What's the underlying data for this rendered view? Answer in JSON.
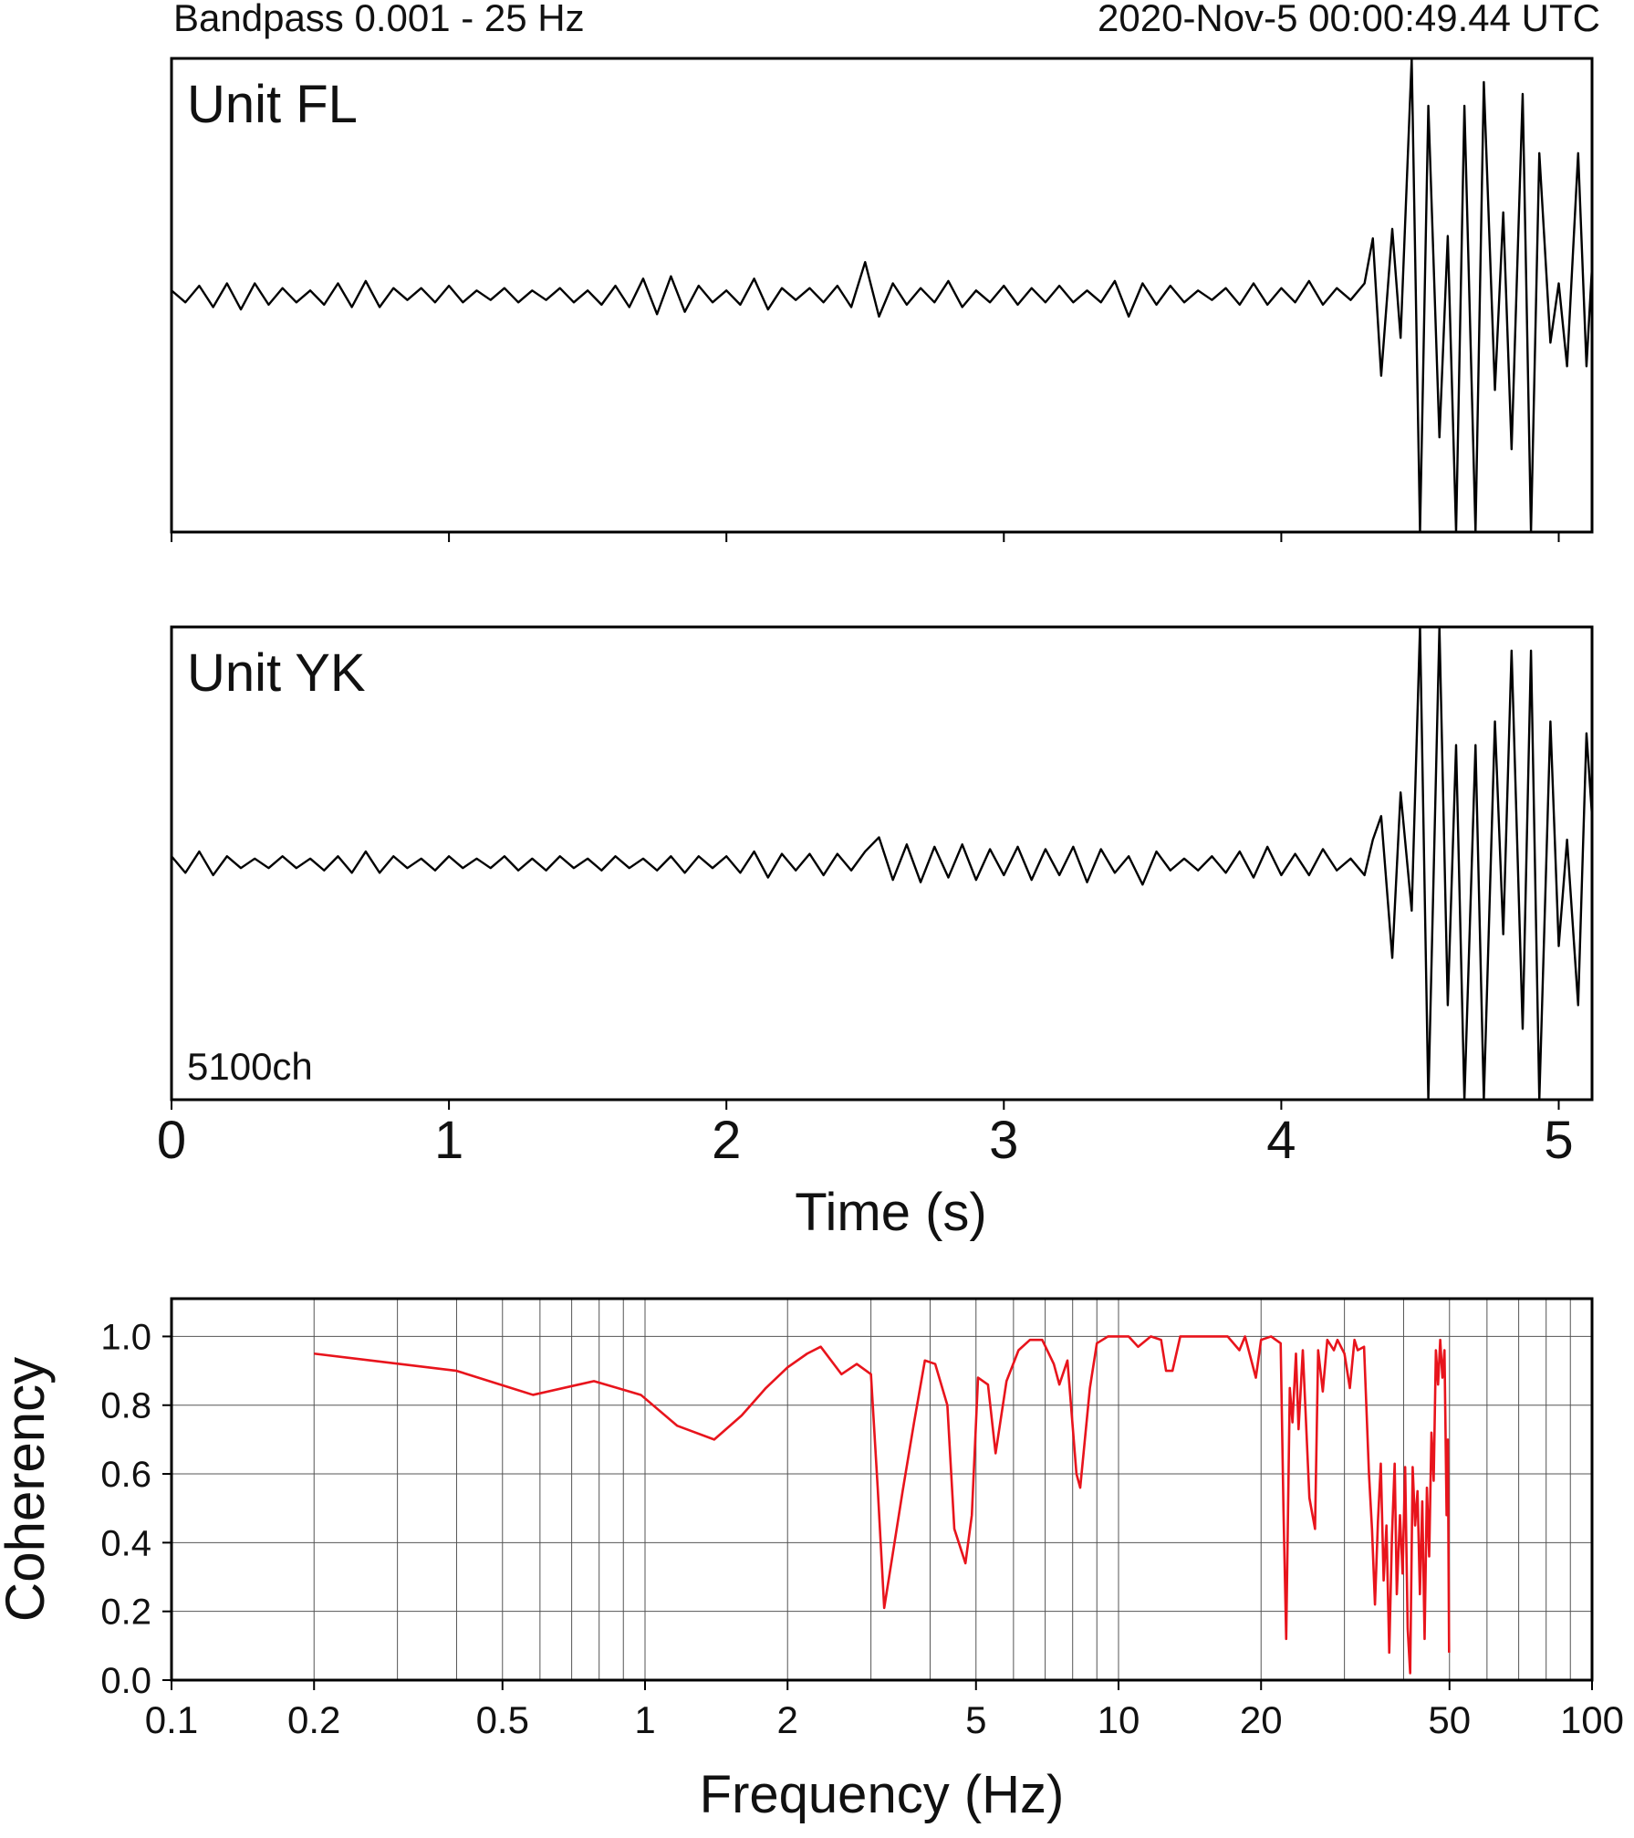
{
  "chart_data": [
    {
      "type": "line",
      "title": "Unit FL",
      "annotations": [
        "Bandpass 0.001 - 25 Hz",
        "2020-Nov-5 00:00:49.44 UTC"
      ],
      "xlim": [
        0,
        5.12
      ],
      "ylim": [
        -1,
        1
      ],
      "xticks": [
        0,
        1,
        2,
        3,
        4,
        5
      ],
      "xtick_labels": false,
      "x": [
        0,
        0.05,
        0.1,
        0.15,
        0.2,
        0.25,
        0.3,
        0.35,
        0.4,
        0.45,
        0.5,
        0.55,
        0.6,
        0.65,
        0.7,
        0.75,
        0.8,
        0.85,
        0.9,
        0.95,
        1,
        1.05,
        1.1,
        1.15,
        1.2,
        1.25,
        1.3,
        1.35,
        1.4,
        1.45,
        1.5,
        1.55,
        1.6,
        1.65,
        1.7,
        1.75,
        1.8,
        1.85,
        1.9,
        1.95,
        2,
        2.05,
        2.1,
        2.15,
        2.2,
        2.25,
        2.3,
        2.35,
        2.4,
        2.45,
        2.5,
        2.55,
        2.6,
        2.65,
        2.7,
        2.75,
        2.8,
        2.85,
        2.9,
        2.95,
        3,
        3.05,
        3.1,
        3.15,
        3.2,
        3.25,
        3.3,
        3.35,
        3.4,
        3.45,
        3.5,
        3.55,
        3.6,
        3.65,
        3.7,
        3.75,
        3.8,
        3.85,
        3.9,
        3.95,
        4,
        4.05,
        4.1,
        4.15,
        4.2,
        4.25,
        4.3,
        4.33,
        4.36,
        4.4,
        4.43,
        4.47,
        4.5,
        4.53,
        4.57,
        4.6,
        4.63,
        4.66,
        4.7,
        4.73,
        4.77,
        4.8,
        4.83,
        4.87,
        4.9,
        4.93,
        4.97,
        5,
        5.03,
        5.07,
        5.1,
        5.12
      ],
      "series": [
        {
          "color": "#000000",
          "values": [
            0.02,
            -0.03,
            0.04,
            -0.05,
            0.05,
            -0.06,
            0.05,
            -0.04,
            0.03,
            -0.03,
            0.02,
            -0.04,
            0.05,
            -0.05,
            0.06,
            -0.05,
            0.03,
            -0.02,
            0.03,
            -0.03,
            0.04,
            -0.03,
            0.02,
            -0.02,
            0.03,
            -0.03,
            0.02,
            -0.02,
            0.03,
            -0.03,
            0.02,
            -0.04,
            0.04,
            -0.05,
            0.07,
            -0.08,
            0.08,
            -0.07,
            0.04,
            -0.03,
            0.02,
            -0.04,
            0.07,
            -0.06,
            0.03,
            -0.02,
            0.03,
            -0.03,
            0.04,
            -0.05,
            0.14,
            -0.09,
            0.05,
            -0.04,
            0.03,
            -0.03,
            0.06,
            -0.05,
            0.02,
            -0.03,
            0.04,
            -0.04,
            0.03,
            -0.03,
            0.04,
            -0.03,
            0.02,
            -0.03,
            0.06,
            -0.09,
            0.05,
            -0.04,
            0.04,
            -0.03,
            0.02,
            -0.02,
            0.03,
            -0.04,
            0.05,
            -0.04,
            0.03,
            -0.03,
            0.06,
            -0.04,
            0.03,
            -0.02,
            0.05,
            0.24,
            -0.34,
            0.28,
            -0.18,
            1,
            -1,
            0.8,
            -0.6,
            0.25,
            -1,
            0.8,
            -1,
            0.9,
            -0.4,
            0.35,
            -0.65,
            0.85,
            -1,
            0.6,
            -0.2,
            0.05,
            -0.3,
            0.6,
            -0.3,
            0.12
          ]
        }
      ]
    },
    {
      "type": "line",
      "title": "Unit YK",
      "annotations": [
        "5100ch"
      ],
      "xlabel": "Time (s)",
      "xlim": [
        0,
        5.12
      ],
      "ylim": [
        -1,
        1
      ],
      "xticks": [
        0,
        1,
        2,
        3,
        4,
        5
      ],
      "xtick_labels": true,
      "x": [
        0,
        0.05,
        0.1,
        0.15,
        0.2,
        0.25,
        0.3,
        0.35,
        0.4,
        0.45,
        0.5,
        0.55,
        0.6,
        0.65,
        0.7,
        0.75,
        0.8,
        0.85,
        0.9,
        0.95,
        1,
        1.05,
        1.1,
        1.15,
        1.2,
        1.25,
        1.3,
        1.35,
        1.4,
        1.45,
        1.5,
        1.55,
        1.6,
        1.65,
        1.7,
        1.75,
        1.8,
        1.85,
        1.9,
        1.95,
        2,
        2.05,
        2.1,
        2.15,
        2.2,
        2.25,
        2.3,
        2.35,
        2.4,
        2.45,
        2.5,
        2.55,
        2.6,
        2.65,
        2.7,
        2.75,
        2.8,
        2.85,
        2.9,
        2.95,
        3,
        3.05,
        3.1,
        3.15,
        3.2,
        3.25,
        3.3,
        3.35,
        3.4,
        3.45,
        3.5,
        3.55,
        3.6,
        3.65,
        3.7,
        3.75,
        3.8,
        3.85,
        3.9,
        3.95,
        4,
        4.05,
        4.1,
        4.15,
        4.2,
        4.25,
        4.3,
        4.33,
        4.36,
        4.4,
        4.43,
        4.47,
        4.5,
        4.53,
        4.57,
        4.6,
        4.63,
        4.66,
        4.7,
        4.73,
        4.77,
        4.8,
        4.83,
        4.87,
        4.9,
        4.93,
        4.97,
        5,
        5.03,
        5.07,
        5.1,
        5.12
      ],
      "series": [
        {
          "color": "#000000",
          "values": [
            0.03,
            -0.04,
            0.05,
            -0.05,
            0.03,
            -0.02,
            0.02,
            -0.02,
            0.03,
            -0.02,
            0.02,
            -0.03,
            0.03,
            -0.04,
            0.05,
            -0.04,
            0.03,
            -0.02,
            0.02,
            -0.03,
            0.03,
            -0.02,
            0.02,
            -0.02,
            0.03,
            -0.03,
            0.02,
            -0.03,
            0.03,
            -0.02,
            0.02,
            -0.03,
            0.03,
            -0.02,
            0.02,
            -0.03,
            0.03,
            -0.04,
            0.03,
            -0.02,
            0.03,
            -0.04,
            0.05,
            -0.06,
            0.04,
            -0.03,
            0.04,
            -0.05,
            0.04,
            -0.03,
            0.05,
            0.11,
            -0.07,
            0.08,
            -0.08,
            0.07,
            -0.06,
            0.08,
            -0.07,
            0.06,
            -0.05,
            0.07,
            -0.07,
            0.06,
            -0.05,
            0.07,
            -0.08,
            0.06,
            -0.04,
            0.03,
            -0.09,
            0.05,
            -0.03,
            0.02,
            -0.03,
            0.03,
            -0.04,
            0.05,
            -0.06,
            0.07,
            -0.05,
            0.04,
            -0.05,
            0.06,
            -0.03,
            0.02,
            -0.05,
            0.1,
            0.2,
            -0.4,
            0.3,
            -0.2,
            1,
            -1,
            1,
            -0.6,
            0.5,
            -1,
            0.5,
            -1,
            0.6,
            -0.3,
            0.9,
            -0.7,
            0.9,
            -1,
            0.6,
            -0.35,
            0.1,
            -0.6,
            0.55,
            0.2
          ]
        }
      ]
    },
    {
      "type": "line",
      "xlabel": "Frequency (Hz)",
      "ylabel": "Coherency",
      "xscale": "log",
      "grid": true,
      "xlim": [
        0.1,
        100
      ],
      "ylim": [
        0,
        1.11
      ],
      "xticks": [
        0.1,
        0.2,
        0.5,
        1,
        2,
        5,
        10,
        20,
        50,
        100
      ],
      "xminor_ticks": [
        0.3,
        0.4,
        0.6,
        0.7,
        0.8,
        0.9,
        3,
        4,
        6,
        7,
        8,
        9,
        30,
        40,
        60,
        70,
        80,
        90
      ],
      "yticks": [
        {
          "value": 0,
          "label": "0.0"
        },
        {
          "value": 0.2,
          "label": "0.2"
        },
        {
          "value": 0.4,
          "label": "0.4"
        },
        {
          "value": 0.6,
          "label": "0.6"
        },
        {
          "value": 0.8,
          "label": "0.8"
        },
        {
          "value": 1,
          "label": "1.0"
        }
      ],
      "x": [
        0.2,
        0.4,
        0.58,
        0.78,
        0.98,
        1.17,
        1.4,
        1.6,
        1.8,
        2.0,
        2.2,
        2.35,
        2.6,
        2.8,
        3.0,
        3.1,
        3.2,
        3.5,
        3.7,
        3.9,
        4.1,
        4.35,
        4.5,
        4.75,
        4.9,
        5.05,
        5.3,
        5.5,
        5.8,
        6.15,
        6.5,
        6.9,
        7.3,
        7.5,
        7.8,
        8.15,
        8.3,
        8.7,
        9.0,
        9.5,
        10.5,
        11,
        11.7,
        12.3,
        12.6,
        13,
        13.5,
        15,
        17,
        18,
        18.5,
        19.5,
        20,
        21,
        22,
        22.3,
        22.6,
        23,
        23.3,
        23.7,
        24,
        24.5,
        25.3,
        26,
        26.4,
        27,
        27.6,
        28.5,
        29,
        30,
        30.8,
        31.5,
        32,
        33,
        33.8,
        34.3,
        34.8,
        35.3,
        35.8,
        36.3,
        36.8,
        37.3,
        37.8,
        38.3,
        38.7,
        39.3,
        39.8,
        40.3,
        40.8,
        41.3,
        41.8,
        42.3,
        42.8,
        43.3,
        43.8,
        44.3,
        44.8,
        45.3,
        45.8,
        46.3,
        46.8,
        47.3,
        47.8,
        48.3,
        48.8,
        49.3,
        49.6,
        49.9
      ],
      "series": [
        {
          "color": "#e8141c",
          "values": [
            0.95,
            0.9,
            0.83,
            0.87,
            0.83,
            0.74,
            0.7,
            0.77,
            0.85,
            0.91,
            0.95,
            0.97,
            0.89,
            0.92,
            0.89,
            0.56,
            0.21,
            0.55,
            0.75,
            0.93,
            0.92,
            0.8,
            0.44,
            0.34,
            0.48,
            0.88,
            0.86,
            0.66,
            0.87,
            0.96,
            0.99,
            0.99,
            0.92,
            0.86,
            0.93,
            0.6,
            0.56,
            0.85,
            0.98,
            1,
            1,
            0.97,
            1,
            0.99,
            0.9,
            0.9,
            1,
            1,
            1,
            0.96,
            1,
            0.88,
            0.99,
            1,
            0.98,
            0.5,
            0.12,
            0.85,
            0.75,
            0.95,
            0.73,
            0.96,
            0.53,
            0.44,
            0.96,
            0.84,
            0.99,
            0.96,
            0.99,
            0.95,
            0.85,
            0.99,
            0.96,
            0.97,
            0.6,
            0.44,
            0.22,
            0.46,
            0.63,
            0.29,
            0.45,
            0.08,
            0.42,
            0.63,
            0.25,
            0.48,
            0.31,
            0.62,
            0.15,
            0.02,
            0.62,
            0.45,
            0.55,
            0.25,
            0.52,
            0.12,
            0.56,
            0.36,
            0.72,
            0.58,
            0.96,
            0.86,
            0.99,
            0.88,
            0.96,
            0.48,
            0.7,
            0.08
          ]
        }
      ]
    }
  ]
}
